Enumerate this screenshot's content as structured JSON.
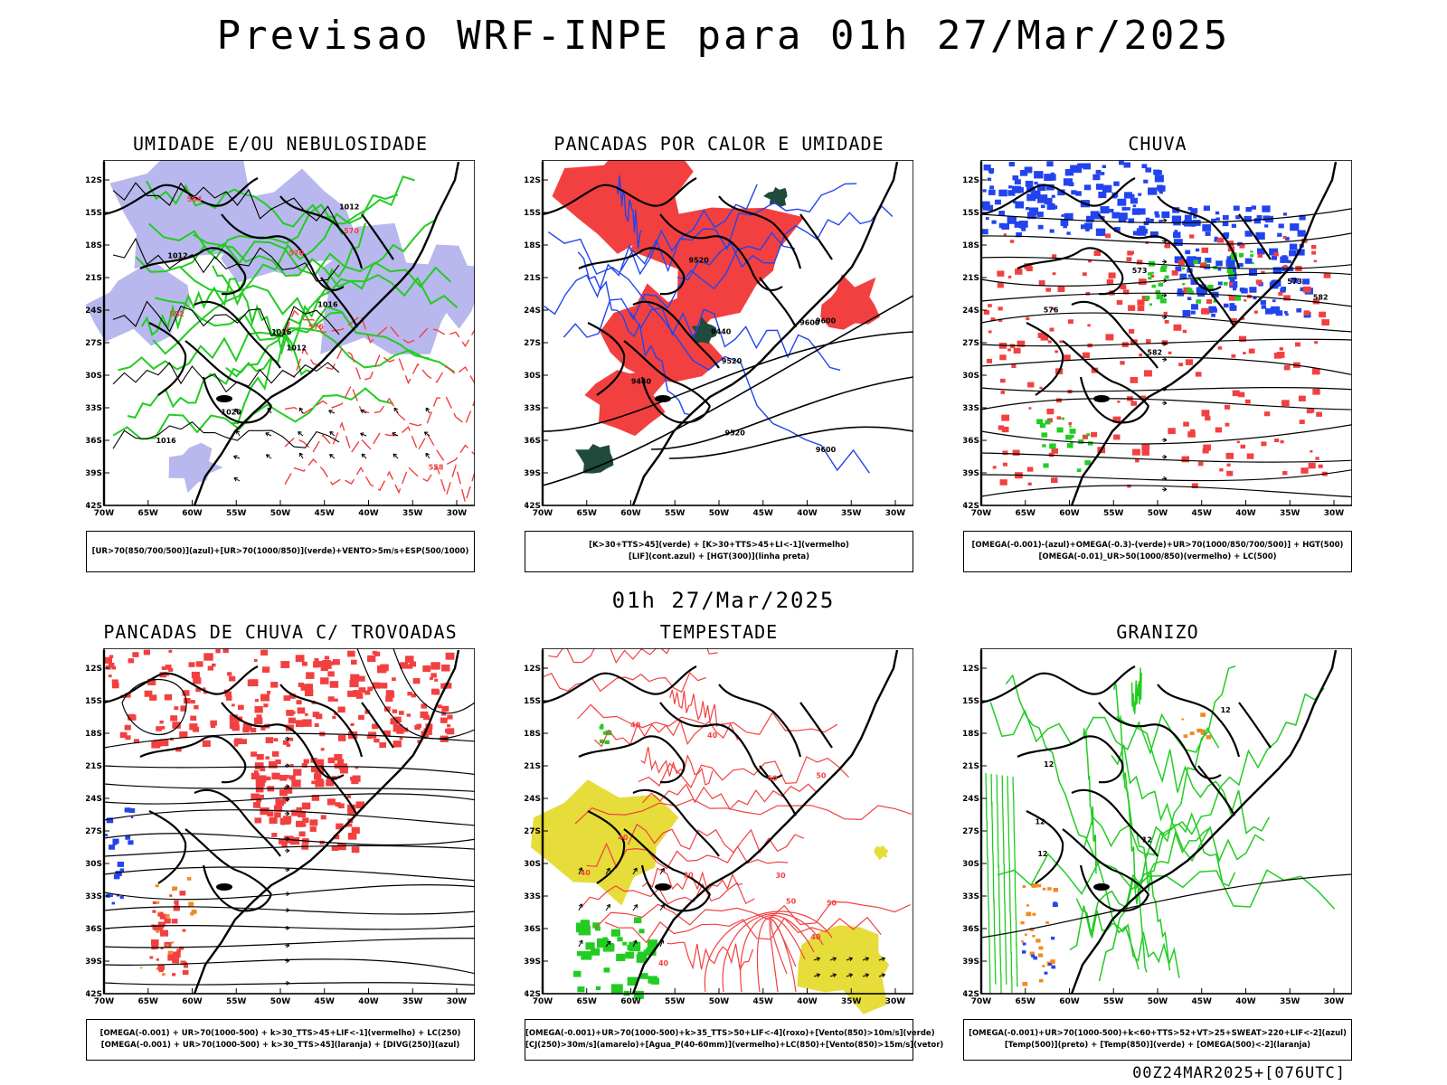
{
  "header": {
    "title": "Previsao WRF-INPE  para 01h 27/Mar/2025"
  },
  "mid_date": "01h 27/Mar/2025",
  "footer": "00Z24MAR2025+[076UTC]",
  "axes": {
    "lat_labels": [
      "12S",
      "15S",
      "18S",
      "21S",
      "24S",
      "27S",
      "30S",
      "33S",
      "36S",
      "39S",
      "42S"
    ],
    "lon_labels": [
      "70W",
      "65W",
      "60W",
      "55W",
      "50W",
      "45W",
      "40W",
      "35W",
      "30W"
    ]
  },
  "colors": {
    "red": "#f24040",
    "green": "#22cc22",
    "blue": "#2244ee",
    "lavender": "#b8b8ee",
    "yellow": "#e6dc3a",
    "darkgreen": "#1f4a3c",
    "orange": "#f08a20",
    "purple": "#cc22cc"
  },
  "panels": [
    {
      "title": "UMIDADE E/OU NEBULOSIDADE",
      "legend": [
        "[UR>70(850/700/500)](azul)+[UR>70(1000/850)](verde)+VENTO>5m/s+ESP(500/1000)"
      ],
      "contour_labels": [
        "1012",
        "1012",
        "1016",
        "1016",
        "1016",
        "1020",
        "1012",
        "570",
        "570",
        "576",
        "564",
        "558",
        "552"
      ]
    },
    {
      "title": "PANCADAS POR CALOR E UMIDADE",
      "legend": [
        "[K>30+TTS>45](verde) + [K>30+TTS>45+LI<-1](vermelho)",
        "[LIF](cont.azul) + [HGT(300)](linha preta)"
      ],
      "contour_labels": [
        "9600",
        "9600",
        "9600",
        "9520",
        "9520",
        "9520",
        "9440",
        "9440"
      ]
    },
    {
      "title": "CHUVA",
      "legend": [
        "[OMEGA(-0.001)-(azul)+OMEGA(-0.3)-(verde)+UR>70(1000/850/700/500)] + HGT(500)",
        "[OMEGA(-0.01)_UR>50(1000/850)(vermelho) + LC(500)"
      ],
      "contour_labels": [
        "582",
        "582",
        "576",
        "573",
        "573"
      ]
    },
    {
      "title": "PANCADAS DE CHUVA C/ TROVOADAS",
      "legend": [
        "[OMEGA(-0.001) + UR>70(1000-500) + k>30_TTS>45+LIF<-1](vermelho) + LC(250)",
        "[OMEGA(-0.001) + UR>70(1000-500) + k>30_TTS>45](laranja) + [DIVG(250)](azul)"
      ],
      "contour_labels": []
    },
    {
      "title": "TEMPESTADE",
      "legend": [
        "[OMEGA(-0.001)+UR>70(1000-500)+k>35_TTS>50+LIF<-4](roxo)+[Vento(850)>10m/s](verde)",
        "[CJ(250)>30m/s](amarelo)+[Agua_P(40-60mm)](vermelho)+LC(850)+[Vento(850)>15m/s](vetor)"
      ],
      "contour_labels": [
        "40",
        "40",
        "50",
        "50",
        "40",
        "30",
        "50",
        "40",
        "50",
        "40",
        "30",
        "40"
      ]
    },
    {
      "title": "GRANIZO",
      "legend": [
        "[OMEGA(-0.001)+UR>70(1000-500)+k<60+TTS>52+VT>25+SWEAT>220+LIF<-2](azul)",
        "[Temp(500)](preto) + [Temp(850)](verde) + [OMEGA(500)<-2](laranja)"
      ],
      "contour_labels": [
        "12",
        "12",
        "12",
        "12",
        "12"
      ]
    }
  ]
}
